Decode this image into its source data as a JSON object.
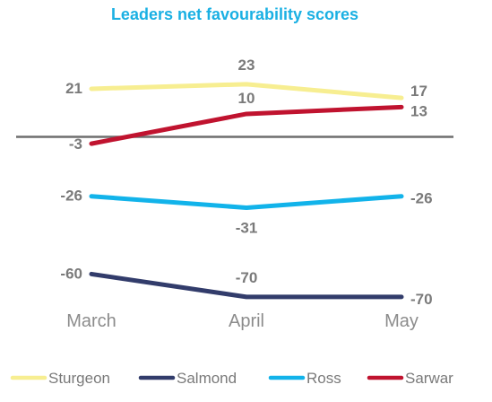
{
  "chart_data": {
    "type": "line",
    "title": "Leaders net favourability scores",
    "categories": [
      "March",
      "April",
      "May"
    ],
    "series": [
      {
        "name": "Sturgeon",
        "color": "#f7ee91",
        "values": [
          21,
          23,
          17
        ]
      },
      {
        "name": "Salmond",
        "color": "#323c6b",
        "values": [
          -60,
          -70,
          -70
        ]
      },
      {
        "name": "Ross",
        "color": "#12b3ea",
        "values": [
          -26,
          -31,
          -26
        ]
      },
      {
        "name": "Sarwar",
        "color": "#c0132f",
        "values": [
          -3,
          10,
          13
        ]
      }
    ],
    "ylim": [
      -72,
      30
    ],
    "zero_line": true,
    "legend_position": "bottom",
    "title_color": "#1ab0e3",
    "zero_line_color": "#6e6e6e"
  }
}
